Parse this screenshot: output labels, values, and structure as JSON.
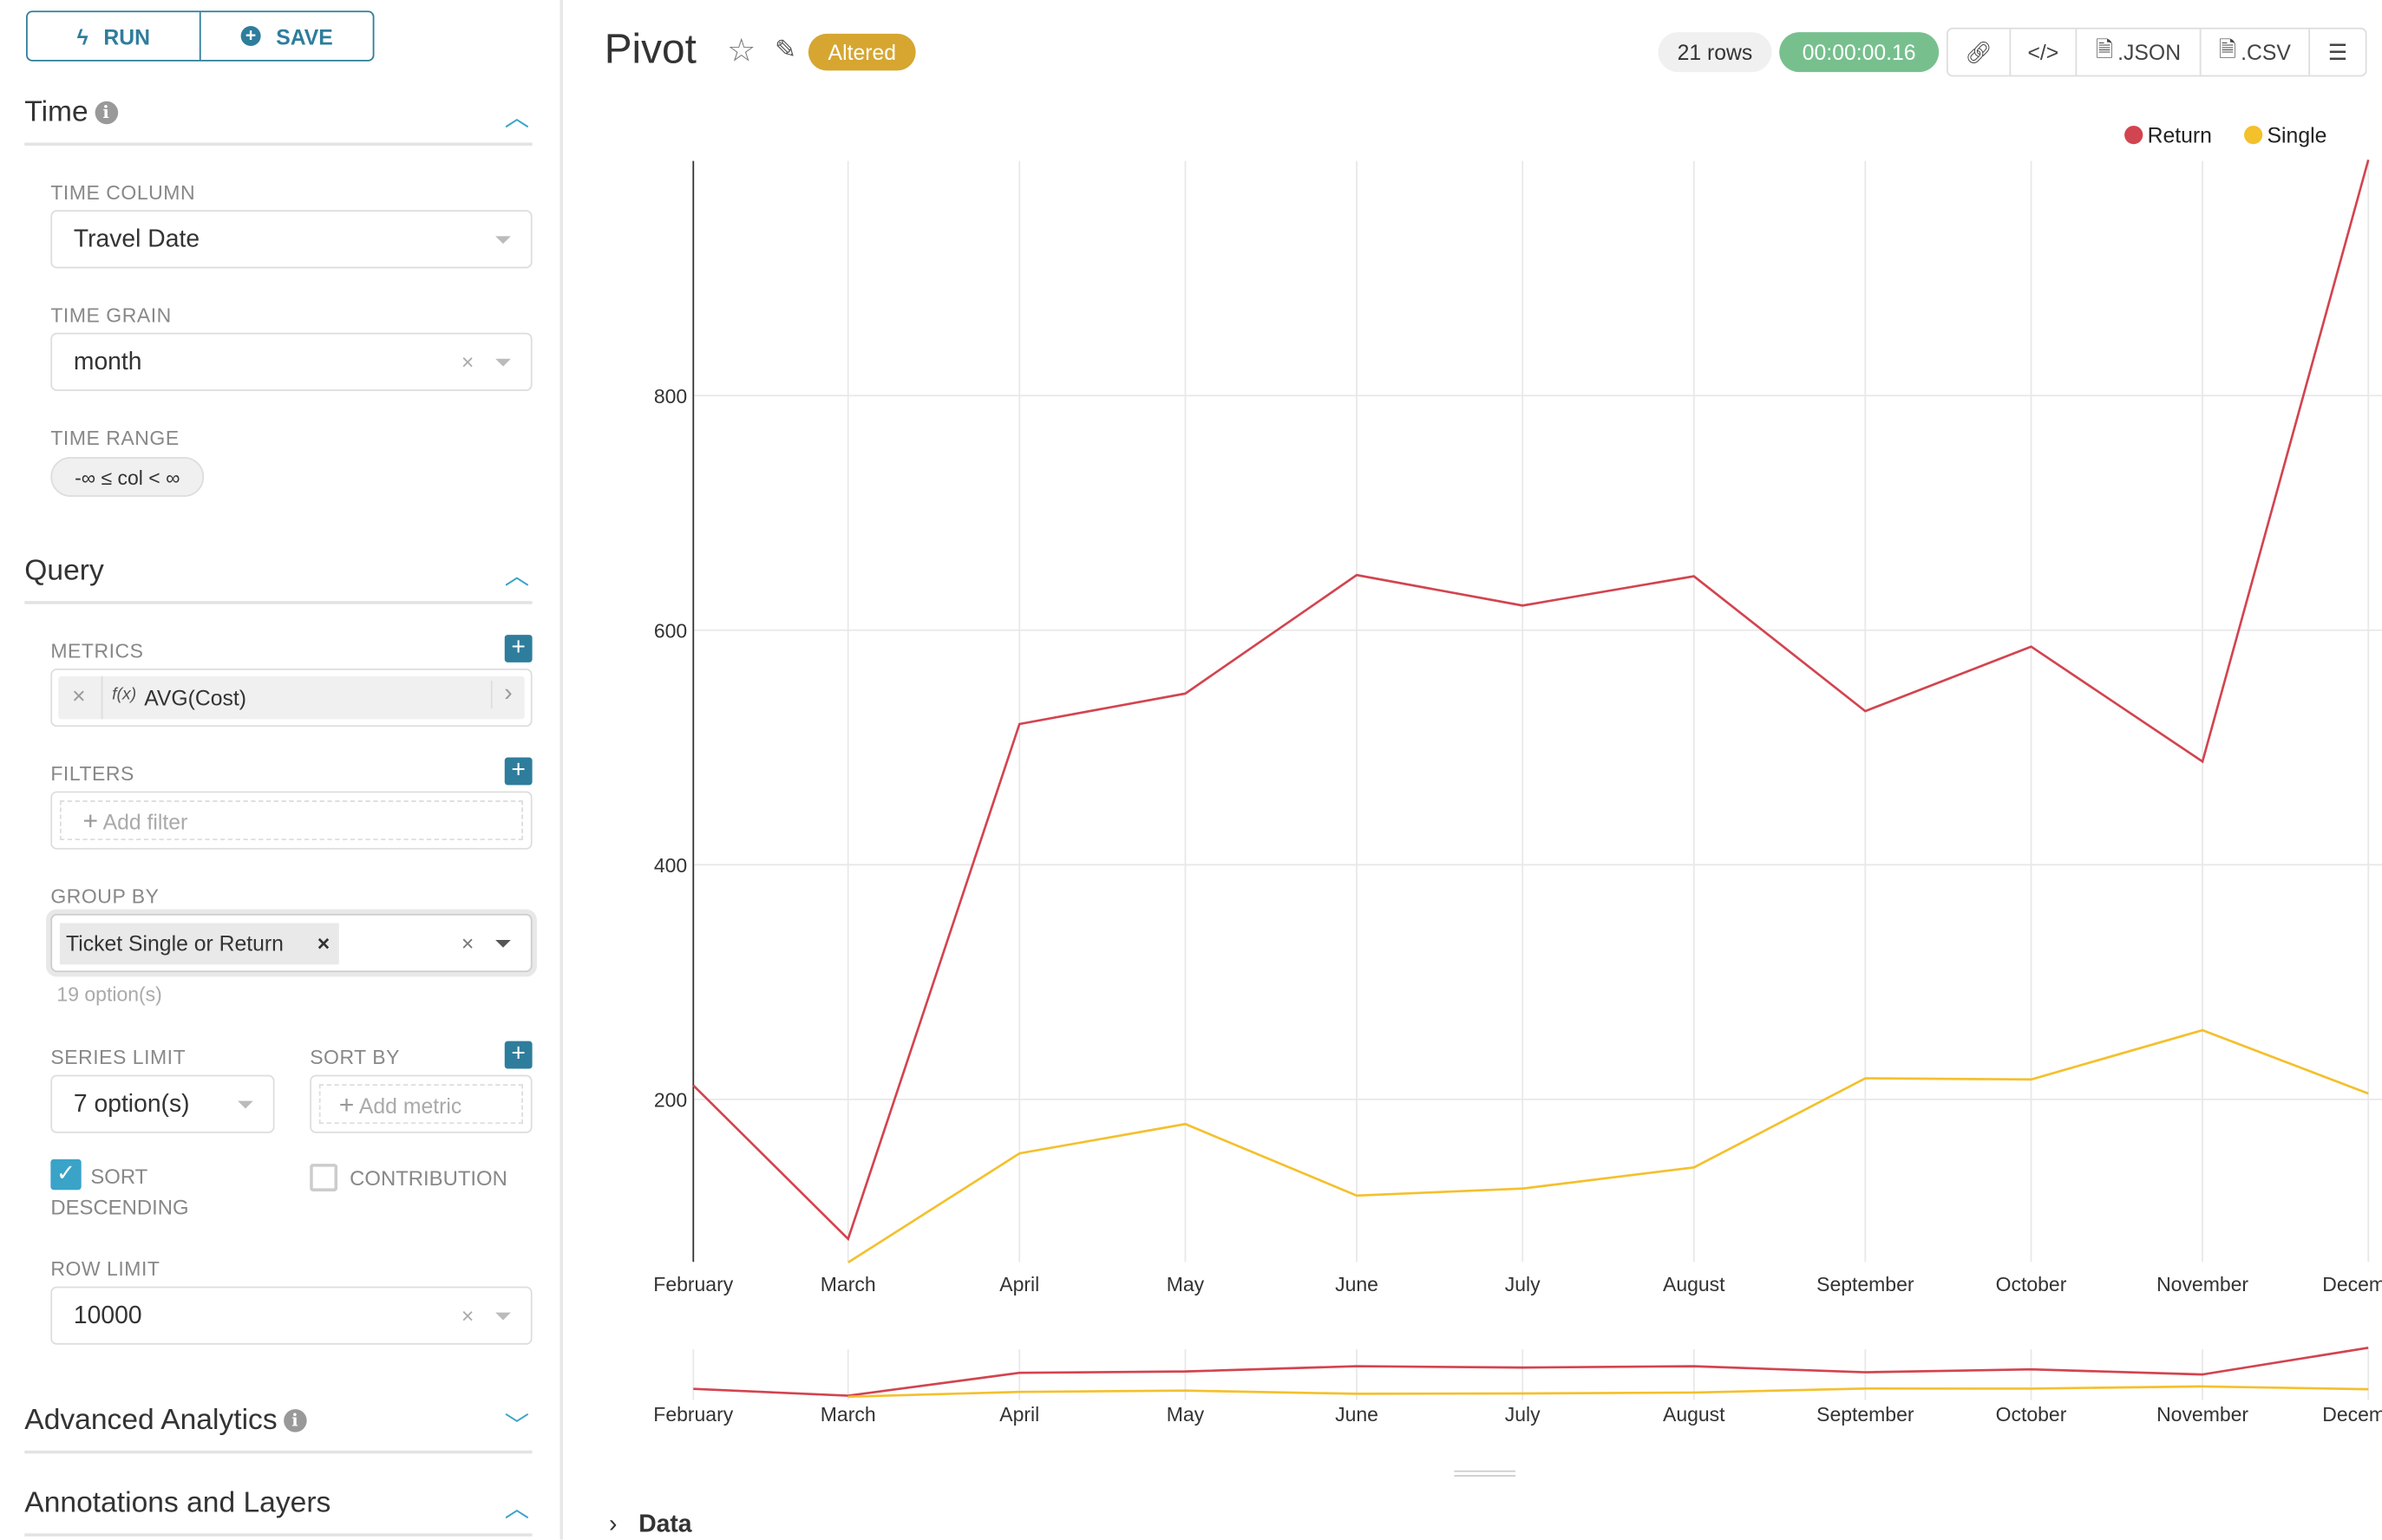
{
  "toolbar": {
    "run_label": "RUN",
    "save_label": "SAVE"
  },
  "sidebar": {
    "time": {
      "title": "Time",
      "time_column_label": "TIME COLUMN",
      "time_column_value": "Travel Date",
      "time_grain_label": "TIME GRAIN",
      "time_grain_value": "month",
      "time_range_label": "TIME RANGE",
      "time_range_value": "-∞ ≤ col < ∞"
    },
    "query": {
      "title": "Query",
      "metrics_label": "METRICS",
      "metric_value": "AVG(Cost)",
      "metric_fx": "f(x)",
      "filters_label": "FILTERS",
      "add_filter": "Add filter",
      "group_by_label": "GROUP BY",
      "group_by_tag": "Ticket Single or Return",
      "group_by_hint": "19 option(s)",
      "series_limit_label": "SERIES LIMIT",
      "series_limit_value": "7 option(s)",
      "sort_by_label": "SORT BY",
      "add_metric": "Add metric",
      "sort_desc_label": "SORT DESCENDING",
      "sort_desc_checked": true,
      "contribution_label": "CONTRIBUTION",
      "contribution_checked": false,
      "row_limit_label": "ROW LIMIT",
      "row_limit_value": "10000"
    },
    "advanced_title": "Advanced Analytics",
    "annotations_title": "Annotations and Layers"
  },
  "header": {
    "title": "Pivot",
    "altered_badge": "Altered",
    "rows": "21 rows",
    "timer": "00:00:00.16",
    "json_label": ".JSON",
    "csv_label": ".CSV"
  },
  "colors": {
    "accent": "#2e7d9c",
    "return": "#d2444f",
    "single": "#f4c02c",
    "timer": "#77c08e",
    "altered": "#d6a631"
  },
  "data_section": {
    "label": "Data"
  },
  "chart_data": {
    "type": "line",
    "categories": [
      "February",
      "March",
      "April",
      "May",
      "June",
      "July",
      "August",
      "September",
      "October",
      "November",
      "December"
    ],
    "series": [
      {
        "name": "Return",
        "color": "#d2444f",
        "values": [
          212,
          81,
          520,
          546,
          647,
          621,
          646,
          531,
          586,
          488,
          1001
        ]
      },
      {
        "name": "Single",
        "color": "#f4c02c",
        "values": [
          null,
          61,
          154,
          179,
          118,
          124,
          142,
          218,
          217,
          259,
          205
        ]
      }
    ],
    "yticks": [
      200,
      400,
      600,
      800
    ],
    "legend_position": "top-right",
    "grid": true
  }
}
